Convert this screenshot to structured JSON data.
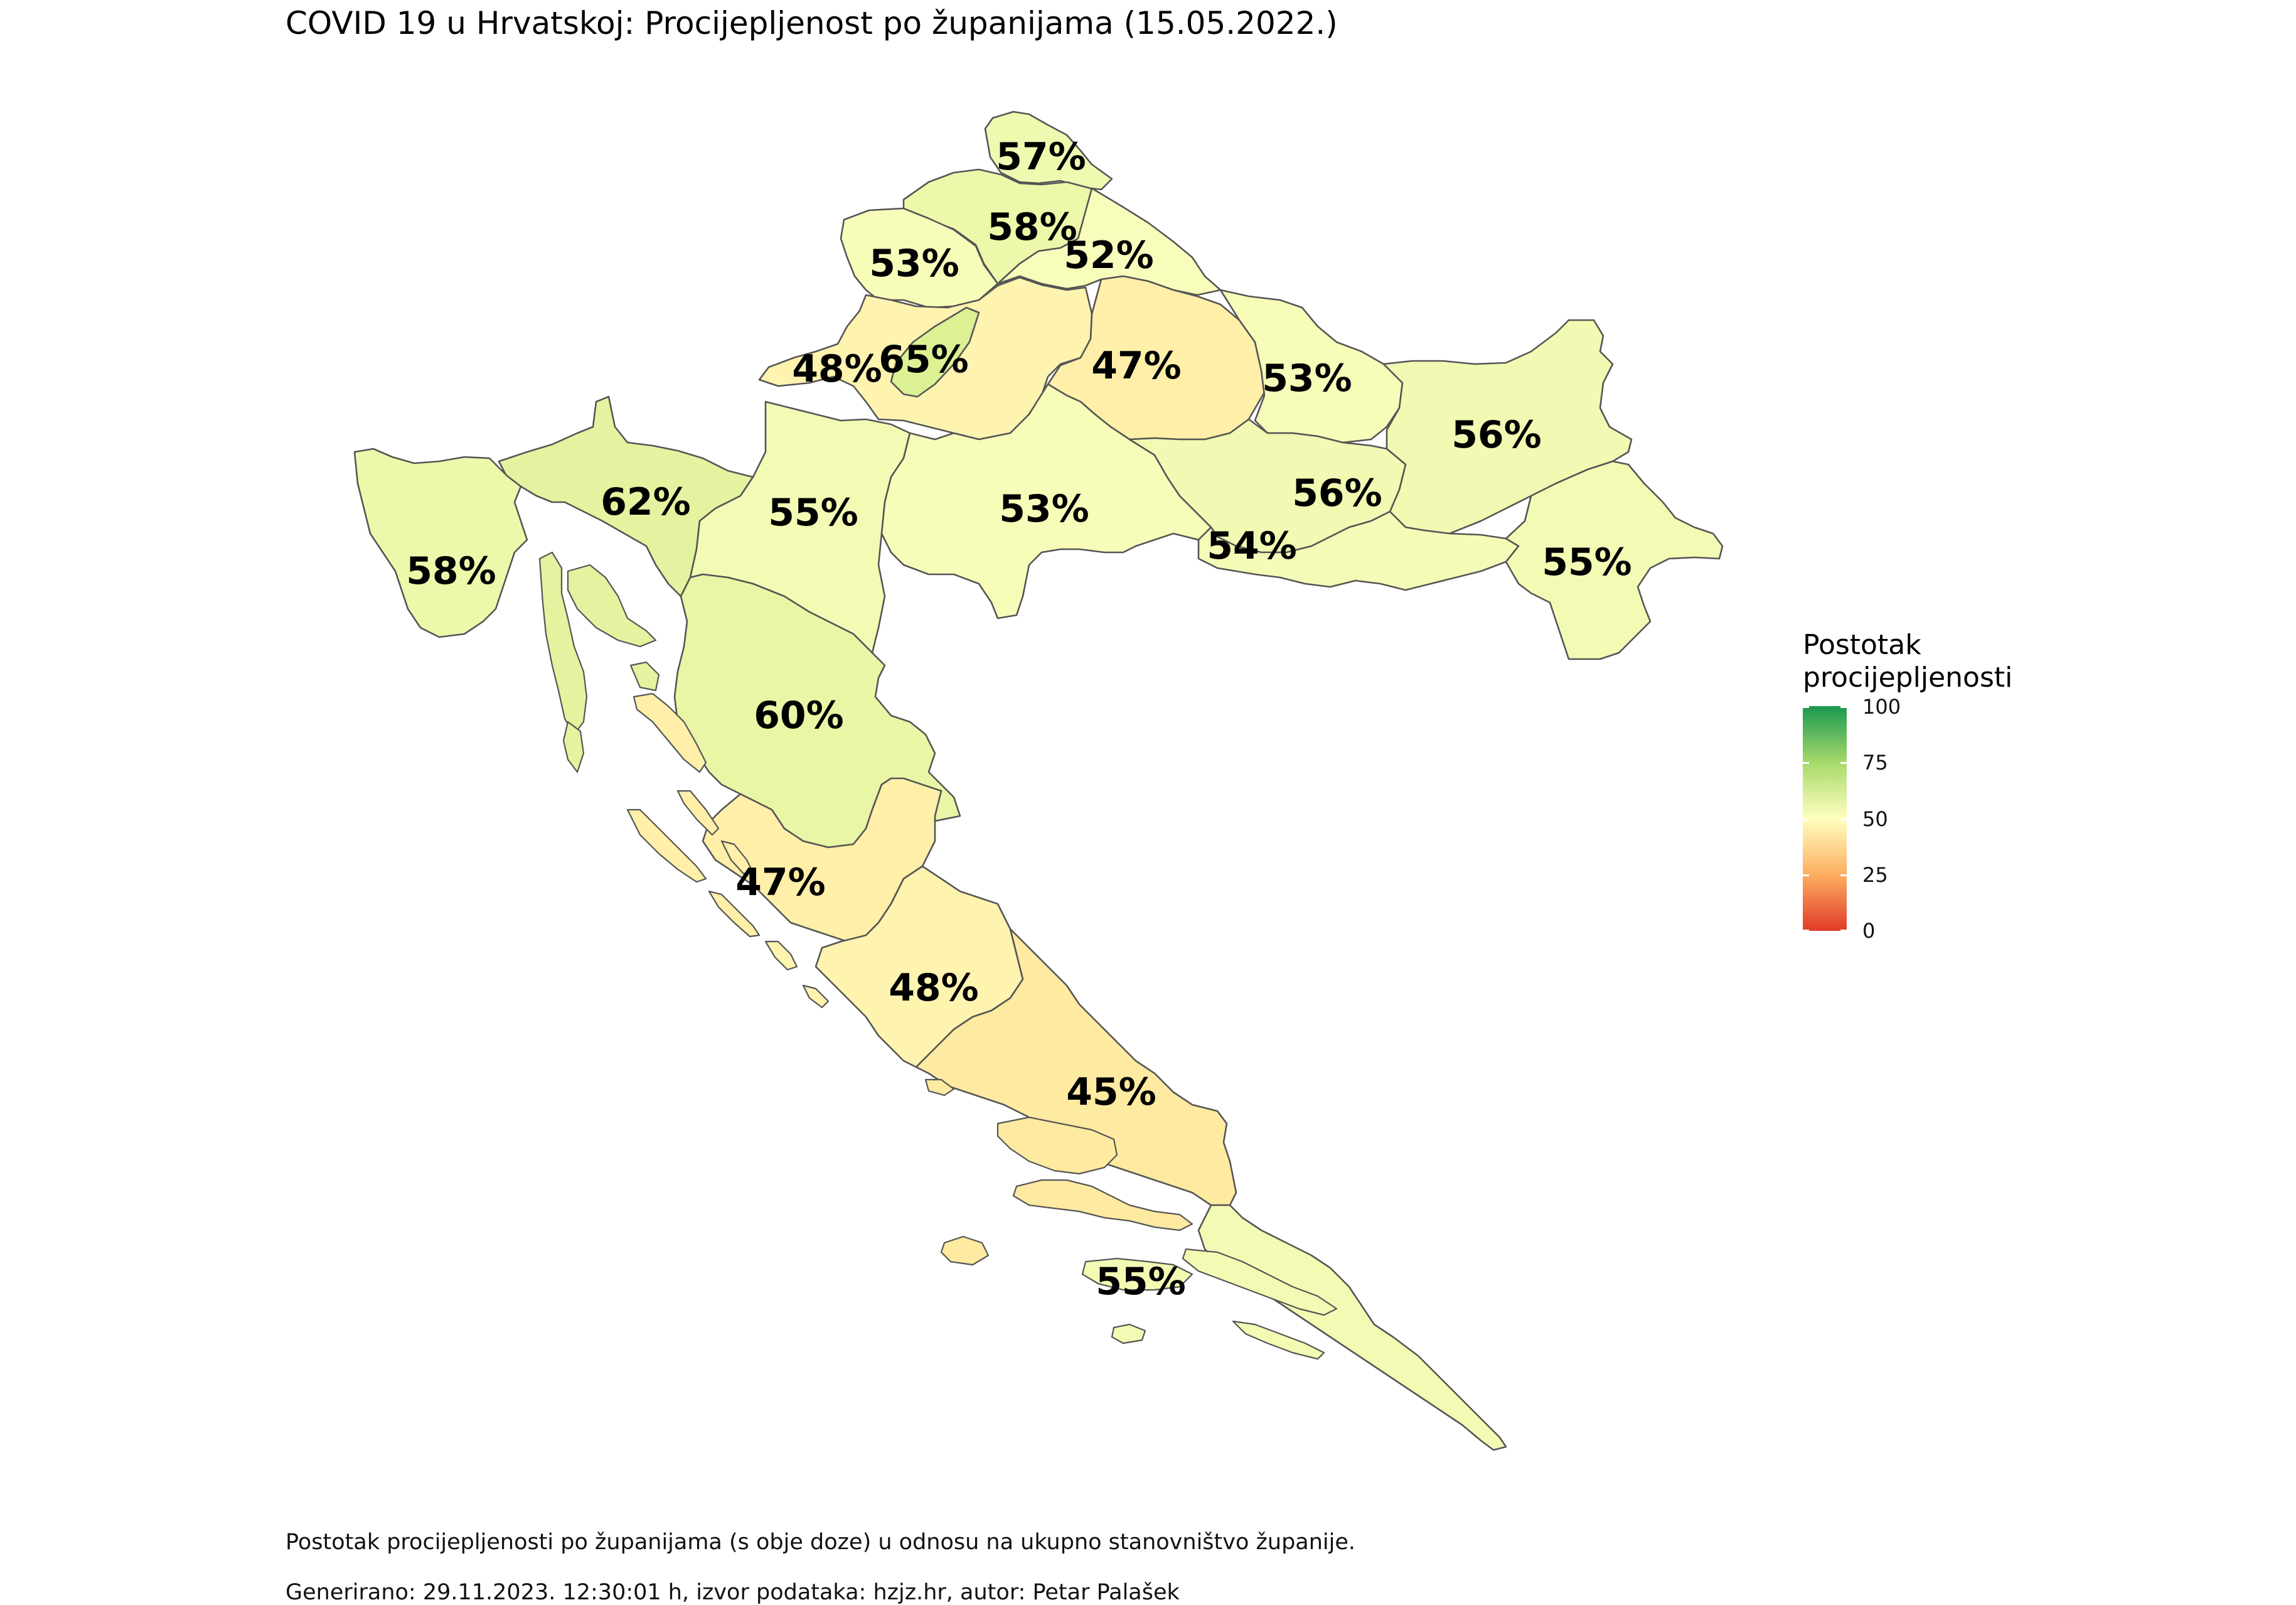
{
  "title": "COVID 19 u Hrvatskoj: Procijepljenost po županijama (15.05.2022.)",
  "legend": {
    "title_line1": "Postotak",
    "title_line2": "procijepljenosti",
    "ticks": [
      "100",
      "75",
      "50",
      "25",
      "0"
    ],
    "scale_colors": {
      "low": "#e03b28",
      "mid": "#ffffbf",
      "high": "#1a9850"
    }
  },
  "counties": [
    {
      "id": "medimurska",
      "label": "57%",
      "value": 57,
      "color": "#f0f9b0"
    },
    {
      "id": "varazdinska",
      "label": "58%",
      "value": 58,
      "color": "#edf8aa"
    },
    {
      "id": "krapinsko-zagorska",
      "label": "53%",
      "value": 53,
      "color": "#f7fcb9"
    },
    {
      "id": "koprivnicko-krizevacka",
      "label": "52%",
      "value": 52,
      "color": "#f9fdbc"
    },
    {
      "id": "zagrebacka",
      "label": "48%",
      "value": 48,
      "color": "#fff3b0"
    },
    {
      "id": "grad-zagreb",
      "label": "65%",
      "value": 65,
      "color": "#dcf094"
    },
    {
      "id": "bjelovarsko-bilogorska",
      "label": "47%",
      "value": 47,
      "color": "#ffefa8"
    },
    {
      "id": "viroviticko-podravska",
      "label": "53%",
      "value": 53,
      "color": "#f7fcb9"
    },
    {
      "id": "osjecko-baranjska",
      "label": "56%",
      "value": 56,
      "color": "#f1f9b2"
    },
    {
      "id": "primorsko-goranska",
      "label": "62%",
      "value": 62,
      "color": "#e3f39f"
    },
    {
      "id": "karlovacka",
      "label": "55%",
      "value": 55,
      "color": "#f3fab4"
    },
    {
      "id": "sisacko-moslavacka",
      "label": "53%",
      "value": 53,
      "color": "#f7fcb9"
    },
    {
      "id": "pozesko-slavonska",
      "label": "56%",
      "value": 56,
      "color": "#f1f9b2"
    },
    {
      "id": "istarska",
      "label": "58%",
      "value": 58,
      "color": "#edf8aa"
    },
    {
      "id": "brodsko-posavska",
      "label": "54%",
      "value": 54,
      "color": "#f5fbb6"
    },
    {
      "id": "vukovarsko-srijemska",
      "label": "55%",
      "value": 55,
      "color": "#f3fab4"
    },
    {
      "id": "licko-senjska",
      "label": "60%",
      "value": 60,
      "color": "#e8f6a6"
    },
    {
      "id": "zadarska",
      "label": "47%",
      "value": 47,
      "color": "#ffefa8"
    },
    {
      "id": "sibensko-kninska",
      "label": "48%",
      "value": 48,
      "color": "#fff3b0"
    },
    {
      "id": "splitsko-dalmatinska",
      "label": "45%",
      "value": 45,
      "color": "#feeaa0"
    },
    {
      "id": "dubrovacko-neretvanska",
      "label": "55%",
      "value": 55,
      "color": "#f3fab4"
    }
  ],
  "caption_line1": "Postotak procijepljenosti po županijama (s obje doze) u odnosu na ukupno stanovništvo županije.",
  "caption_line2": "Generirano: 29.11.2023. 12:30:01 h, izvor podataka: hzjz.hr, autor: Petar Palašek"
}
